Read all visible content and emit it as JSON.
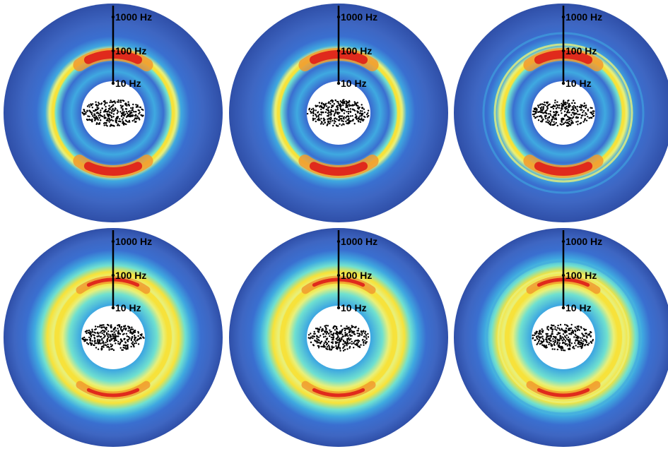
{
  "figure": {
    "axis_ticks": [
      "1000 Hz",
      "100 Hz",
      "10 Hz"
    ],
    "colormap": [
      "#2f4fa8",
      "#3a6fd0",
      "#3fa9e0",
      "#6fe0d0",
      "#e8f07a",
      "#f7e23a",
      "#f09a30",
      "#e02a1c"
    ],
    "background_color": "#3e66c2",
    "point_cloud_color": "#000000",
    "panels": [
      {
        "id": "row1-col1",
        "variant": "banded"
      },
      {
        "id": "row1-col2",
        "variant": "banded"
      },
      {
        "id": "row1-col3",
        "variant": "banded-multiring"
      },
      {
        "id": "row2-col1",
        "variant": "ring"
      },
      {
        "id": "row2-col2",
        "variant": "ring"
      },
      {
        "id": "row2-col3",
        "variant": "ring-multiring"
      }
    ]
  }
}
